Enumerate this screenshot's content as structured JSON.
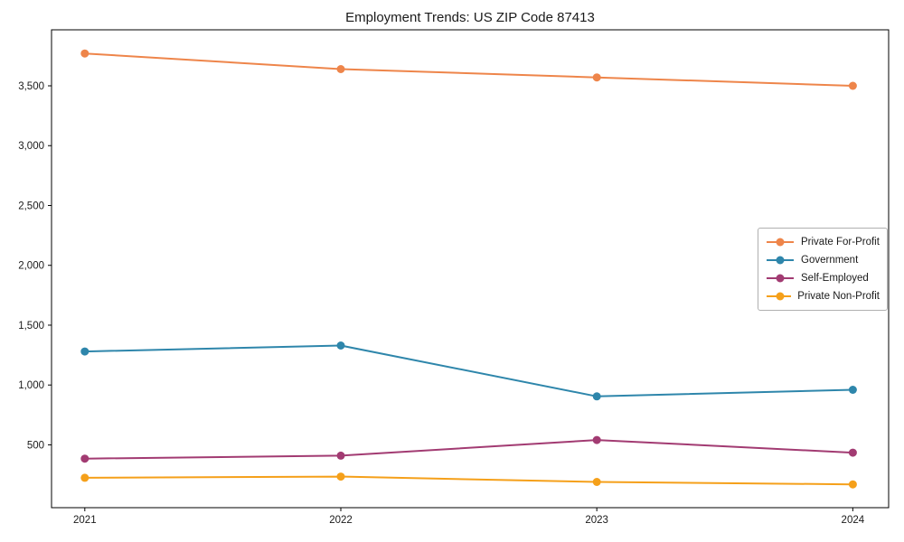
{
  "chart_data": {
    "type": "line",
    "title": "Employment Trends: US ZIP Code 87413",
    "x": [
      2021,
      2022,
      2023,
      2024
    ],
    "x_tick_labels": [
      "2021",
      "2022",
      "2023",
      "2024"
    ],
    "series": [
      {
        "name": "Private For-Profit",
        "color": "#EE854A",
        "values": [
          3770,
          3640,
          3570,
          3500
        ]
      },
      {
        "name": "Government",
        "color": "#2E86AB",
        "values": [
          1280,
          1330,
          905,
          960
        ]
      },
      {
        "name": "Self-Employed",
        "color": "#A23B72",
        "values": [
          385,
          410,
          540,
          435
        ]
      },
      {
        "name": "Private Non-Profit",
        "color": "#F5A01A",
        "values": [
          225,
          235,
          190,
          170
        ]
      }
    ],
    "xlim": [
      2020.87,
      2024.14
    ],
    "ylim": [
      -25,
      3968
    ],
    "yticks": [
      500,
      1000,
      1500,
      2000,
      2500,
      3000,
      3500
    ],
    "ytick_labels": [
      "500",
      "1,000",
      "1,500",
      "2,000",
      "2,500",
      "3,000",
      "3,500"
    ],
    "grid": false,
    "legend": {
      "position": "center right"
    },
    "marker_radius": 4.5,
    "line_width": 2,
    "axis_color": "#000000"
  }
}
